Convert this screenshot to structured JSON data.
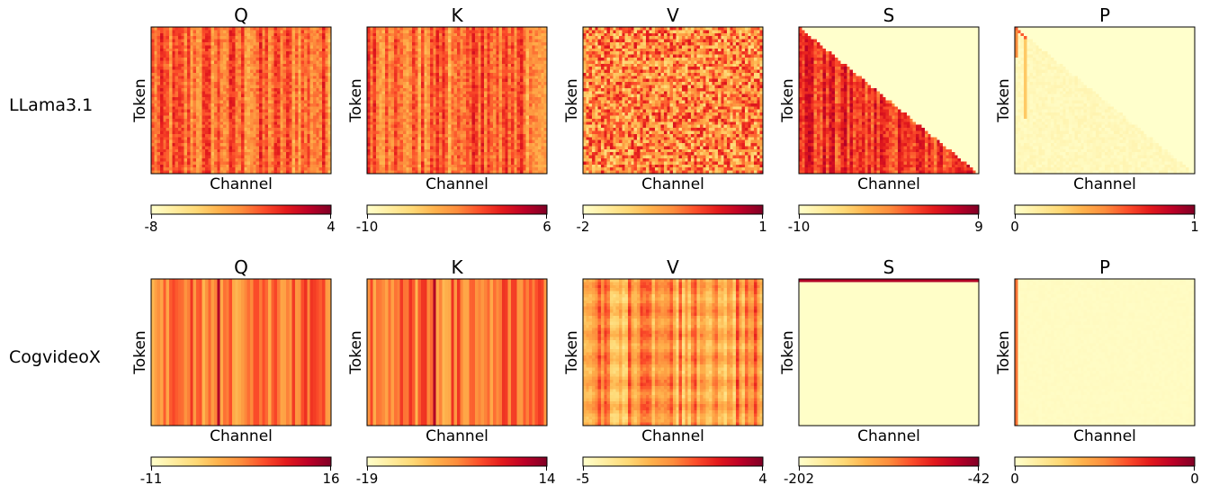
{
  "chart_data": [
    {
      "type": "heatmap",
      "model": "LLama3.1",
      "panels": [
        {
          "title": "Q",
          "xlabel": "Channel",
          "ylabel": "Token",
          "colorbar": {
            "min": "-8",
            "max": "4"
          },
          "pattern": "striped-columns",
          "level": 0.65
        },
        {
          "title": "K",
          "xlabel": "Channel",
          "ylabel": "Token",
          "colorbar": {
            "min": "-10",
            "max": "6"
          },
          "pattern": "striped-columns",
          "level": 0.62
        },
        {
          "title": "V",
          "xlabel": "Channel",
          "ylabel": "Token",
          "colorbar": {
            "min": "-2",
            "max": "1"
          },
          "pattern": "noise",
          "level": 0.5
        },
        {
          "title": "S",
          "xlabel": "Channel",
          "ylabel": "Token",
          "colorbar": {
            "min": "-10",
            "max": "9"
          },
          "pattern": "lower-triangle",
          "level": 0.7
        },
        {
          "title": "P",
          "xlabel": "Channel",
          "ylabel": "Token",
          "colorbar": {
            "min": "0",
            "max": "1"
          },
          "pattern": "sparse-diagonal",
          "level": 0.05
        }
      ]
    },
    {
      "type": "heatmap",
      "model": "CogvideoX",
      "panels": [
        {
          "title": "Q",
          "xlabel": "Channel",
          "ylabel": "Token",
          "colorbar": {
            "min": "-11",
            "max": "16"
          },
          "pattern": "smooth-columns",
          "level": 0.4
        },
        {
          "title": "K",
          "xlabel": "Channel",
          "ylabel": "Token",
          "colorbar": {
            "min": "-19",
            "max": "14"
          },
          "pattern": "smooth-columns",
          "level": 0.6
        },
        {
          "title": "V",
          "xlabel": "Channel",
          "ylabel": "Token",
          "colorbar": {
            "min": "-5",
            "max": "4"
          },
          "pattern": "banded-columns",
          "level": 0.5
        },
        {
          "title": "S",
          "xlabel": "Channel",
          "ylabel": "Token",
          "colorbar": {
            "min": "-202",
            "max": "-42"
          },
          "pattern": "top-row",
          "level": 0.02
        },
        {
          "title": "P",
          "xlabel": "Channel",
          "ylabel": "Token",
          "colorbar": {
            "min": "0",
            "max": "0"
          },
          "pattern": "first-column",
          "level": 0.02
        }
      ]
    }
  ],
  "colormap": [
    "#ffffcc",
    "#ffeda0",
    "#fed976",
    "#feb24c",
    "#fd8d3c",
    "#fc4e2a",
    "#e31a1c",
    "#bd0026",
    "#800026"
  ]
}
